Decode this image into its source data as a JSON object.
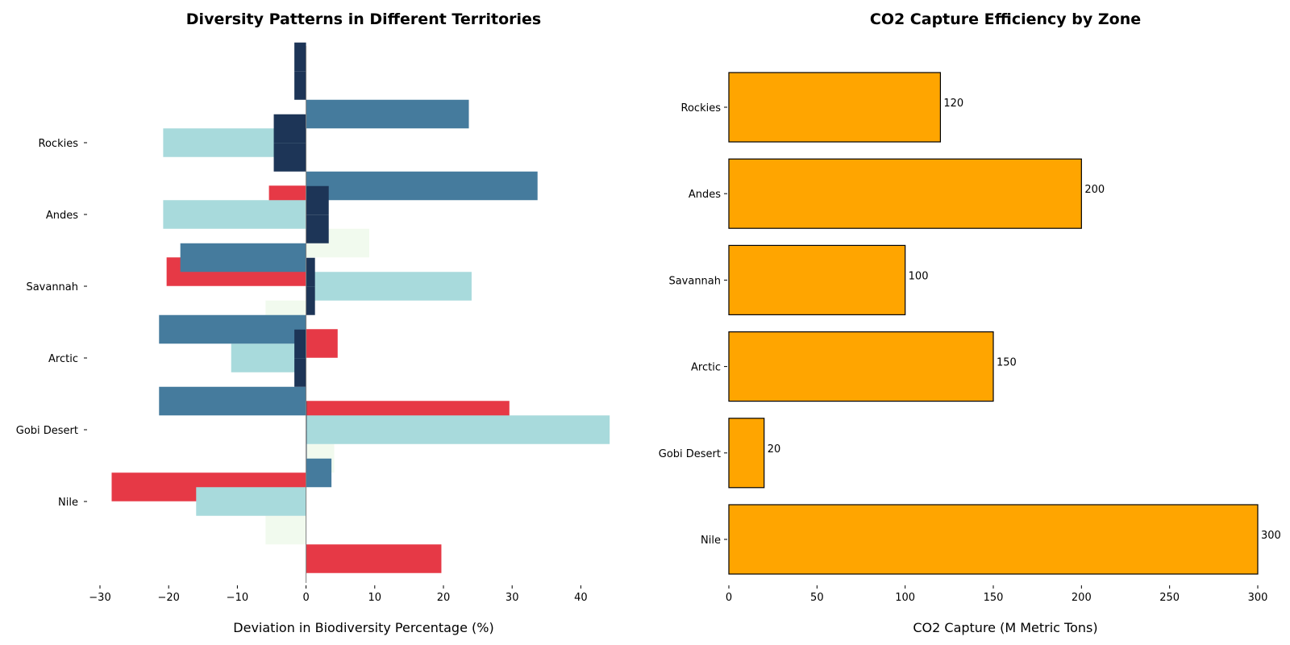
{
  "chart_data": [
    {
      "type": "bar",
      "orientation": "horizontal",
      "title": "Diversity Patterns in Different Territories",
      "xlabel": "Deviation in Biodiversity Percentage (%)",
      "ylabel": "",
      "categories": [
        "Nile",
        "Gobi Desert",
        "Arctic",
        "Savannah",
        "Andes",
        "Rockies"
      ],
      "xlim": [
        -30,
        45
      ],
      "xticks": [
        -30,
        -20,
        -10,
        0,
        10,
        20,
        30,
        40
      ],
      "xtick_labels": [
        "−30",
        "−20",
        "−10",
        "0",
        "10",
        "20",
        "30",
        "40"
      ],
      "grid": false,
      "series": [
        {
          "color": "#e63946",
          "values": [
            19.7,
            -28.3,
            29.6,
            4.6,
            -20.3,
            -5.4
          ]
        },
        {
          "color": "#f1faee",
          "values": [
            -5.9,
            4.1,
            -0.1,
            -5.9,
            9.2,
            -0.1
          ]
        },
        {
          "color": "#a8dadc",
          "values": [
            -16.0,
            44.2,
            -10.9,
            24.1,
            -20.8,
            -20.8
          ]
        },
        {
          "color": "#457b9d",
          "values": [
            3.7,
            -21.4,
            -21.4,
            -18.3,
            33.7,
            23.7
          ]
        },
        {
          "color": "#1d3557",
          "values": [
            0.1,
            -1.7,
            1.3,
            3.3,
            -4.7,
            -1.7
          ]
        },
        {
          "color": "#1d3557",
          "values": [
            0.1,
            -1.7,
            1.3,
            3.3,
            -4.7,
            -1.7
          ]
        }
      ]
    },
    {
      "type": "bar",
      "orientation": "horizontal",
      "title": "CO2 Capture Efficiency by Zone",
      "xlabel": "CO2 Capture (M Metric Tons)",
      "ylabel": "",
      "categories": [
        "Nile",
        "Gobi Desert",
        "Arctic",
        "Savannah",
        "Andes",
        "Rockies"
      ],
      "values": [
        300,
        20,
        150,
        100,
        200,
        120
      ],
      "data_labels": [
        "300",
        "20",
        "150",
        "100",
        "200",
        "120"
      ],
      "xlim": [
        0,
        300
      ],
      "xticks": [
        0,
        50,
        100,
        150,
        200,
        250,
        300
      ],
      "xtick_labels": [
        "0",
        "50",
        "100",
        "150",
        "200",
        "250",
        "300"
      ],
      "bar_color": "#ffa500",
      "edge_color": "#000000",
      "grid": false
    }
  ]
}
